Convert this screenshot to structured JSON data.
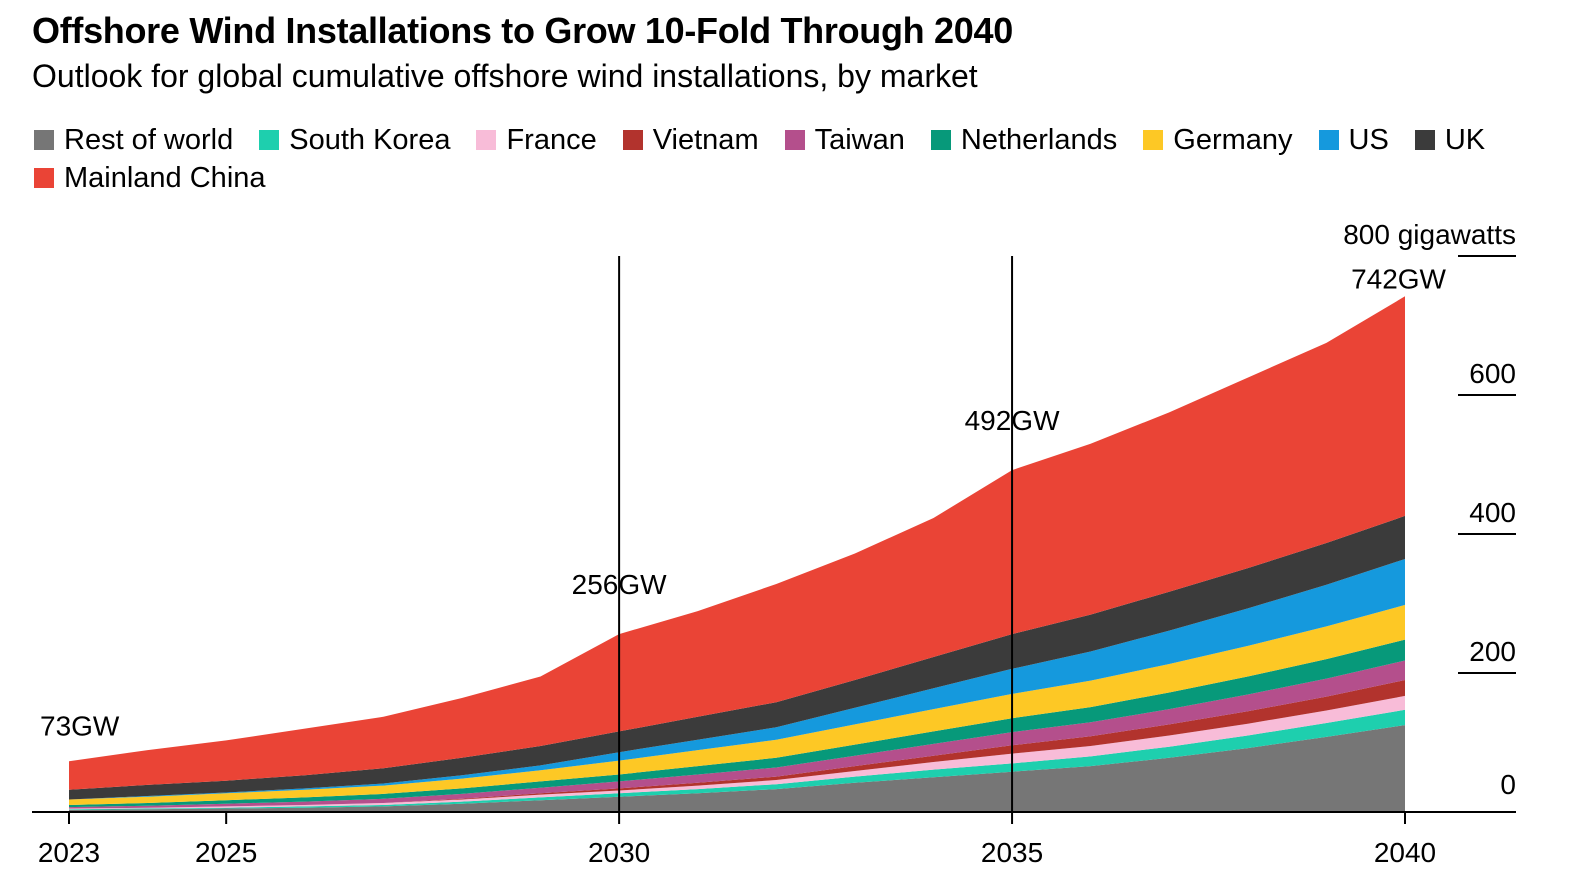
{
  "title": "Offshore Wind Installations to Grow 10-Fold Through 2040",
  "subtitle": "Outlook for global cumulative offshore wind installations, by market",
  "chart_data": {
    "type": "area",
    "stacked": true,
    "title": "Offshore Wind Installations to Grow 10-Fold Through 2040",
    "subtitle": "Outlook for global cumulative offshore wind installations, by market",
    "x": [
      2023,
      2024,
      2025,
      2026,
      2027,
      2028,
      2029,
      2030,
      2031,
      2032,
      2033,
      2034,
      2035,
      2036,
      2037,
      2038,
      2039,
      2040
    ],
    "x_ticks": [
      "2023",
      "2025",
      "2030",
      "2035",
      "2040"
    ],
    "xlim": [
      2023,
      2040
    ],
    "ylim": [
      0,
      800
    ],
    "y_ticks": [
      {
        "value": 0,
        "label": "0"
      },
      {
        "value": 200,
        "label": "200"
      },
      {
        "value": 400,
        "label": "400"
      },
      {
        "value": 600,
        "label": "600"
      },
      {
        "value": 800,
        "label": "800 gigawatts"
      }
    ],
    "y_axis_side": "right",
    "legend_position": "top",
    "series": [
      {
        "name": "Rest of world",
        "color": "#767676",
        "values": [
          3,
          4,
          5,
          6,
          8,
          12,
          17,
          22,
          27,
          33,
          42,
          50,
          58,
          66,
          78,
          92,
          108,
          125
        ]
      },
      {
        "name": "South Korea",
        "color": "#1ecfae",
        "values": [
          1,
          1,
          1,
          2,
          2,
          3,
          4,
          5,
          6,
          7,
          9,
          11,
          12,
          14,
          16,
          18,
          20,
          22
        ]
      },
      {
        "name": "France",
        "color": "#f8bcd8",
        "values": [
          1,
          1,
          2,
          2,
          3,
          3,
          4,
          4,
          5,
          6,
          8,
          11,
          14,
          15,
          16,
          17,
          18,
          20
        ]
      },
      {
        "name": "Vietnam",
        "color": "#b2332d",
        "values": [
          0,
          0,
          0,
          0,
          0,
          1,
          2,
          3,
          4,
          5,
          7,
          9,
          12,
          14,
          16,
          18,
          20,
          23
        ]
      },
      {
        "name": "Taiwan",
        "color": "#b44f8c",
        "values": [
          2,
          3,
          4,
          5,
          6,
          7,
          8,
          10,
          12,
          13,
          15,
          17,
          19,
          20,
          22,
          24,
          26,
          28
        ]
      },
      {
        "name": "Netherlands",
        "color": "#07997a",
        "values": [
          3,
          4,
          5,
          6,
          7,
          8,
          9,
          10,
          12,
          14,
          16,
          18,
          20,
          22,
          24,
          26,
          28,
          30
        ]
      },
      {
        "name": "Germany",
        "color": "#fdc825",
        "values": [
          8,
          9,
          10,
          11,
          12,
          14,
          16,
          20,
          23,
          26,
          29,
          32,
          35,
          38,
          41,
          44,
          47,
          50
        ]
      },
      {
        "name": "US",
        "color": "#1599dd",
        "values": [
          0,
          1,
          1,
          2,
          3,
          5,
          7,
          12,
          15,
          18,
          24,
          30,
          36,
          42,
          48,
          54,
          60,
          66
        ]
      },
      {
        "name": "UK",
        "color": "#3b3b3b",
        "values": [
          14,
          16,
          17,
          19,
          22,
          25,
          28,
          30,
          33,
          36,
          40,
          45,
          50,
          53,
          56,
          58,
          60,
          62
        ]
      },
      {
        "name": "Mainland China",
        "color": "#ea4436",
        "values": [
          41,
          50,
          58,
          67,
          74,
          86,
          100,
          140,
          152,
          170,
          182,
          200,
          236,
          246,
          258,
          274,
          288,
          316
        ]
      }
    ],
    "annotations": [
      {
        "x": 2023,
        "label": "73GW",
        "guide_line": false
      },
      {
        "x": 2030,
        "label": "256GW",
        "guide_line": true
      },
      {
        "x": 2035,
        "label": "492GW",
        "guide_line": true
      },
      {
        "x": 2040,
        "label": "742GW",
        "guide_line": false
      }
    ]
  }
}
